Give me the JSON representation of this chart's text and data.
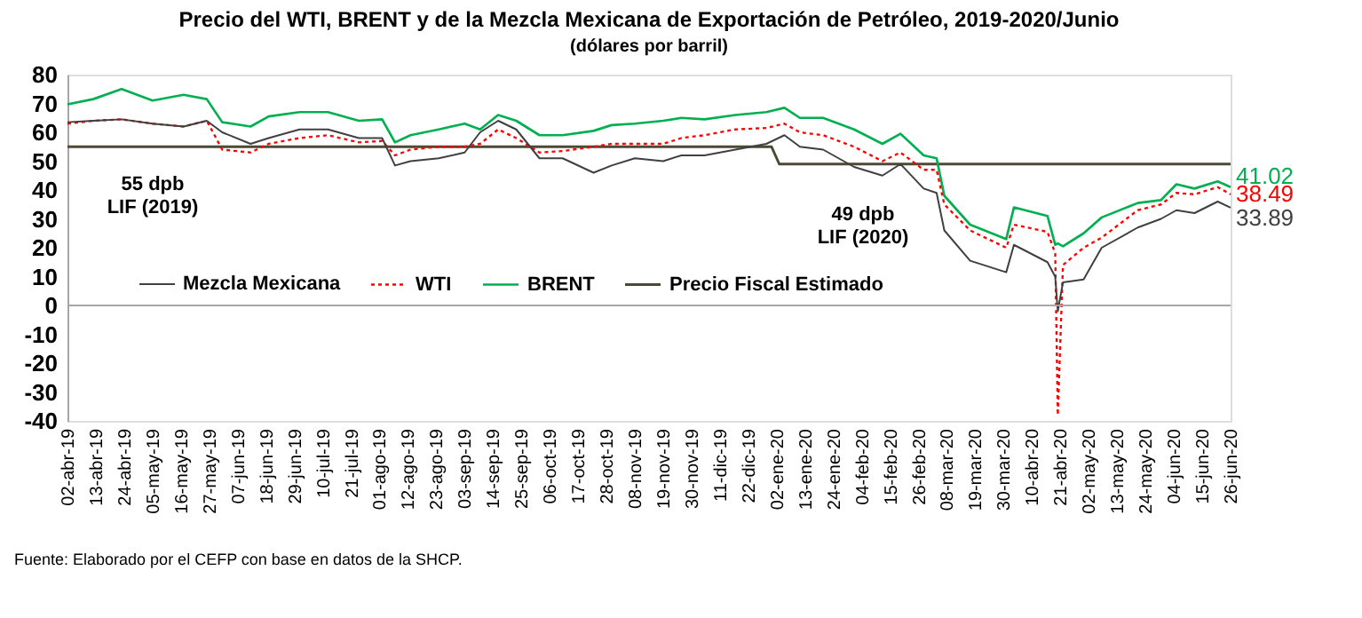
{
  "chart_data": {
    "type": "line",
    "title": "Precio del WTI, BRENT y de la Mezcla Mexicana de Exportación de Petróleo, 2019-2020/Junio",
    "subtitle": "(dólares por barril)",
    "x": [
      "2019-04-02",
      "2019-04-12",
      "2019-04-23",
      "2019-05-05",
      "2019-05-17",
      "2019-05-26",
      "2019-06-01",
      "2019-06-12",
      "2019-06-19",
      "2019-07-01",
      "2019-07-12",
      "2019-07-24",
      "2019-08-02",
      "2019-08-07",
      "2019-08-13",
      "2019-08-24",
      "2019-09-03",
      "2019-09-09",
      "2019-09-16",
      "2019-09-23",
      "2019-10-02",
      "2019-10-11",
      "2019-10-23",
      "2019-10-30",
      "2019-11-08",
      "2019-11-19",
      "2019-11-26",
      "2019-12-05",
      "2019-12-17",
      "2019-12-29",
      "2020-01-05",
      "2020-01-11",
      "2020-01-20",
      "2020-02-01",
      "2020-02-12",
      "2020-02-19",
      "2020-02-28",
      "2020-03-04",
      "2020-03-07",
      "2020-03-17",
      "2020-03-31",
      "2020-04-03",
      "2020-04-16",
      "2020-04-19",
      "2020-04-20",
      "2020-04-22",
      "2020-04-30",
      "2020-05-07",
      "2020-05-21",
      "2020-05-30",
      "2020-06-05",
      "2020-06-12",
      "2020-06-21",
      "2020-06-26"
    ],
    "series": [
      {
        "name": "Mezcla Mexicana",
        "color": "#404040",
        "line_style": "solid",
        "values": [
          63.5,
          64,
          64.5,
          63,
          62,
          64,
          60,
          56,
          58,
          61,
          61,
          58,
          58,
          48.5,
          50,
          51,
          53,
          60,
          64,
          61,
          51,
          51,
          46,
          48.5,
          51,
          50,
          52,
          52,
          54,
          56,
          59,
          55,
          54,
          48,
          45,
          49,
          40.5,
          39,
          26,
          15.5,
          11.5,
          21,
          15,
          10,
          -2,
          8,
          9,
          20,
          27,
          30,
          33,
          32,
          36,
          33.89
        ],
        "value_labels": [
          null,
          null,
          null,
          null,
          null,
          null,
          null,
          null,
          null,
          null,
          null,
          null,
          null,
          null,
          null,
          null,
          null,
          null,
          null,
          null,
          null,
          null,
          null,
          null,
          null,
          null,
          null,
          null,
          null,
          null,
          null,
          null,
          null,
          null,
          null,
          null,
          null,
          null,
          null,
          null,
          null,
          null,
          null,
          null,
          null,
          null,
          null,
          null,
          null,
          null,
          null,
          null,
          null,
          "33.89"
        ]
      },
      {
        "name": "WTI",
        "color": "#ff0000",
        "line_style": "dotted",
        "values": [
          63,
          64,
          64.5,
          63,
          62,
          64,
          54,
          53,
          56,
          58,
          59,
          56.5,
          57,
          52,
          54,
          55,
          55,
          56,
          61,
          58,
          53,
          53.5,
          55,
          56,
          56,
          56,
          58,
          59,
          61,
          61.5,
          63,
          60,
          59,
          55,
          50,
          53,
          47,
          47,
          35,
          26,
          20,
          28,
          25.5,
          18,
          -38,
          14,
          20,
          23.5,
          33,
          35,
          39,
          38.5,
          41,
          38.49
        ],
        "value_labels": [
          null,
          null,
          null,
          null,
          null,
          null,
          null,
          null,
          null,
          null,
          null,
          null,
          null,
          null,
          null,
          null,
          null,
          null,
          null,
          null,
          null,
          null,
          null,
          null,
          null,
          null,
          null,
          null,
          null,
          null,
          null,
          null,
          null,
          null,
          null,
          null,
          null,
          null,
          null,
          null,
          null,
          null,
          null,
          null,
          null,
          null,
          null,
          null,
          null,
          null,
          null,
          null,
          null,
          "38.49"
        ]
      },
      {
        "name": "BRENT",
        "color": "#00b050",
        "line_style": "solid",
        "values": [
          69.7,
          71.5,
          75,
          71,
          73,
          71.5,
          63.5,
          62,
          65.5,
          67,
          67,
          64,
          64.5,
          56.5,
          59,
          61,
          63,
          61,
          66,
          64,
          59,
          59,
          60.5,
          62.5,
          63,
          64,
          65,
          64.5,
          66,
          67,
          68.5,
          65,
          65,
          61,
          56,
          59.5,
          52,
          51,
          38,
          28,
          23,
          34,
          31,
          21,
          21.5,
          20.5,
          25,
          30.5,
          35.5,
          36.5,
          42,
          40.5,
          43,
          41.02
        ],
        "value_labels": [
          null,
          null,
          null,
          null,
          null,
          null,
          null,
          null,
          null,
          null,
          null,
          null,
          null,
          null,
          null,
          null,
          null,
          null,
          null,
          null,
          null,
          null,
          null,
          null,
          null,
          null,
          null,
          null,
          null,
          null,
          null,
          null,
          null,
          null,
          null,
          null,
          null,
          null,
          null,
          null,
          null,
          null,
          null,
          null,
          null,
          null,
          null,
          null,
          null,
          null,
          null,
          null,
          null,
          "41.02"
        ]
      },
      {
        "name": "Precio Fiscal Estimado",
        "color": "#4d4a33",
        "line_style": "solid",
        "x": [
          "2019-04-02",
          "2019-12-31",
          "2020-01-03",
          "2020-06-26"
        ],
        "values": [
          55,
          55,
          49,
          49
        ]
      }
    ],
    "xlim": [
      "2019-04-02",
      "2020-06-26"
    ],
    "xticks": [
      {
        "value": "2019-04-02",
        "label": "02-abr-19"
      },
      {
        "value": "2019-04-13",
        "label": "13-abr-19"
      },
      {
        "value": "2019-04-24",
        "label": "24-abr-19"
      },
      {
        "value": "2019-05-05",
        "label": "05-may-19"
      },
      {
        "value": "2019-05-16",
        "label": "16-may-19"
      },
      {
        "value": "2019-05-27",
        "label": "27-may-19"
      },
      {
        "value": "2019-06-07",
        "label": "07-jun-19"
      },
      {
        "value": "2019-06-18",
        "label": "18-jun-19"
      },
      {
        "value": "2019-06-29",
        "label": "29-jun-19"
      },
      {
        "value": "2019-07-10",
        "label": "10-jul-19"
      },
      {
        "value": "2019-07-21",
        "label": "21-jul-19"
      },
      {
        "value": "2019-08-01",
        "label": "01-ago-19"
      },
      {
        "value": "2019-08-12",
        "label": "12-ago-19"
      },
      {
        "value": "2019-08-23",
        "label": "23-ago-19"
      },
      {
        "value": "2019-09-03",
        "label": "03-sep-19"
      },
      {
        "value": "2019-09-14",
        "label": "14-sep-19"
      },
      {
        "value": "2019-09-25",
        "label": "25-sep-19"
      },
      {
        "value": "2019-10-06",
        "label": "06-oct-19"
      },
      {
        "value": "2019-10-17",
        "label": "17-oct-19"
      },
      {
        "value": "2019-10-28",
        "label": "28-oct-19"
      },
      {
        "value": "2019-11-08",
        "label": "08-nov-19"
      },
      {
        "value": "2019-11-19",
        "label": "19-nov-19"
      },
      {
        "value": "2019-11-30",
        "label": "30-nov-19"
      },
      {
        "value": "2019-12-11",
        "label": "11-dic-19"
      },
      {
        "value": "2019-12-22",
        "label": "22-dic-19"
      },
      {
        "value": "2020-01-02",
        "label": "02-ene-20"
      },
      {
        "value": "2020-01-13",
        "label": "13-ene-20"
      },
      {
        "value": "2020-01-24",
        "label": "24-ene-20"
      },
      {
        "value": "2020-02-04",
        "label": "04-feb-20"
      },
      {
        "value": "2020-02-15",
        "label": "15-feb-20"
      },
      {
        "value": "2020-02-26",
        "label": "26-feb-20"
      },
      {
        "value": "2020-03-08",
        "label": "08-mar-20"
      },
      {
        "value": "2020-03-19",
        "label": "19-mar-20"
      },
      {
        "value": "2020-03-30",
        "label": "30-mar-20"
      },
      {
        "value": "2020-04-10",
        "label": "10-abr-20"
      },
      {
        "value": "2020-04-21",
        "label": "21-abr-20"
      },
      {
        "value": "2020-05-02",
        "label": "02-may-20"
      },
      {
        "value": "2020-05-13",
        "label": "13-may-20"
      },
      {
        "value": "2020-05-24",
        "label": "24-may-20"
      },
      {
        "value": "2020-06-04",
        "label": "04-jun-20"
      },
      {
        "value": "2020-06-15",
        "label": "15-jun-20"
      },
      {
        "value": "2020-06-26",
        "label": "26-jun-20"
      }
    ],
    "ylim": [
      -40,
      80
    ],
    "yticks": [
      -40,
      -30,
      -20,
      -10,
      0,
      10,
      20,
      30,
      40,
      50,
      60,
      70,
      80
    ],
    "ref_lines": [
      {
        "axis": "y",
        "value": 0,
        "color": "#a6a6a6"
      }
    ],
    "annotations": [
      "55 dpb\nLIF (2019)",
      "49 dpb\nLIF (2020)",
      "Fuente: Elaborado por el CEFP con base en datos de la SHCP."
    ],
    "legend": "bottom left",
    "grid": false
  }
}
